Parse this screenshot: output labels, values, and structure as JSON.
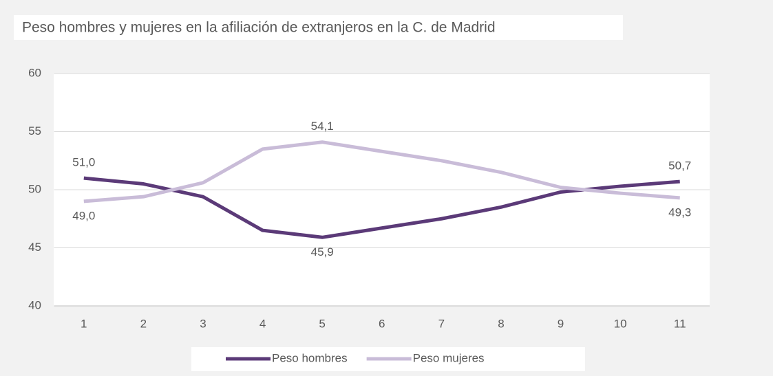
{
  "chart_data": {
    "type": "line",
    "title": "Peso hombres y mujeres en la afiliación de extranjeros en la C. de Madrid",
    "categories": [
      1,
      2,
      3,
      4,
      5,
      6,
      7,
      8,
      9,
      10,
      11
    ],
    "series": [
      {
        "name": "Peso hombres",
        "color": "#5b3a78",
        "values": [
          51.0,
          50.5,
          49.4,
          46.5,
          45.9,
          46.7,
          47.5,
          48.5,
          49.8,
          50.3,
          50.7
        ],
        "value_labels": [
          "51,0",
          null,
          null,
          null,
          "45,9",
          null,
          null,
          null,
          null,
          null,
          "50,7"
        ]
      },
      {
        "name": "Peso mujeres",
        "color": "#c9bcd8",
        "values": [
          49.0,
          49.4,
          50.6,
          53.5,
          54.1,
          53.3,
          52.5,
          51.5,
          50.2,
          49.7,
          49.3
        ],
        "value_labels": [
          "49,0",
          null,
          null,
          null,
          "54,1",
          null,
          null,
          null,
          null,
          null,
          "49,3"
        ]
      }
    ],
    "ylim": [
      40,
      60
    ],
    "yticks": [
      40,
      45,
      50,
      55,
      60
    ],
    "grid": true,
    "legend": "bottom"
  }
}
